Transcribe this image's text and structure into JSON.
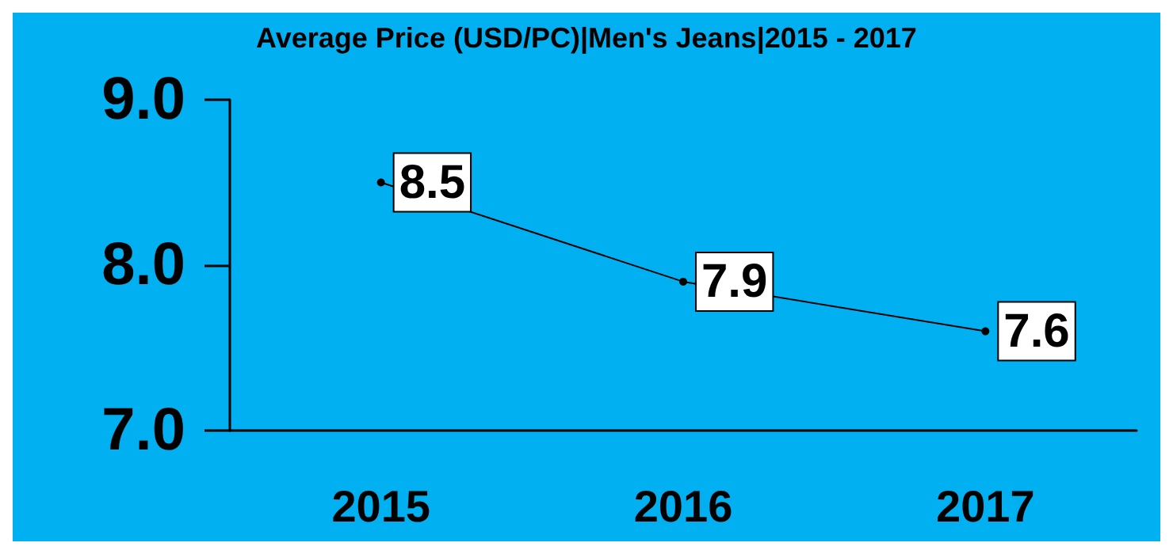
{
  "chart_data": {
    "type": "line",
    "title": "Average Price (USD/PC)|Men's Jeans|2015 - 2017",
    "categories": [
      "2015",
      "2016",
      "2017"
    ],
    "series": [
      {
        "color": "#000000",
        "values": [
          8.5,
          7.9,
          7.6
        ]
      }
    ],
    "ylim": [
      7,
      9
    ],
    "yticks": [
      {
        "value": 7,
        "label": "7.0"
      },
      {
        "value": 8,
        "label": "8.0"
      },
      {
        "value": 9,
        "label": "9.0"
      }
    ],
    "grid": false,
    "marker": "circle",
    "line_style": "solid",
    "data_labels": true
  }
}
